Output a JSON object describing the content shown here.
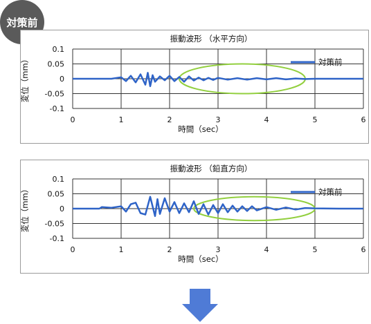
{
  "badge": {
    "label": "対策前"
  },
  "colors": {
    "series": "#2e63c7",
    "highlight": "#92cf3e",
    "grid": "#333333",
    "badge": "#5a5a5a",
    "arrow": "#4f7bd6"
  },
  "icons": {
    "flow_arrow": "down-arrow-icon"
  },
  "chart_data": [
    {
      "type": "line",
      "title": "振動波形 （水平方向）",
      "xlabel": "時間（sec）",
      "ylabel": "変位（mm）",
      "xlim": [
        0,
        6
      ],
      "ylim": [
        -0.1,
        0.1
      ],
      "xticks": [
        "0",
        "1",
        "2",
        "3",
        "4",
        "5",
        "6"
      ],
      "yticks": [
        "0.1",
        "0.05",
        "0",
        "-0.05",
        "-0.1"
      ],
      "grid": true,
      "legend": "top-right",
      "highlight_ellipse": {
        "x_center": 3.5,
        "x_width": 2.6,
        "y_center": 0.0,
        "y_height": 0.1
      },
      "series": [
        {
          "name": "対策前",
          "x": [
            0.0,
            0.5,
            0.8,
            1.0,
            1.1,
            1.2,
            1.3,
            1.4,
            1.5,
            1.55,
            1.6,
            1.65,
            1.7,
            1.8,
            1.9,
            2.0,
            2.1,
            2.2,
            2.3,
            2.4,
            2.5,
            2.6,
            2.7,
            2.8,
            2.9,
            3.0,
            3.2,
            3.4,
            3.6,
            3.8,
            4.0,
            4.2,
            4.4,
            4.6,
            4.8,
            5.0,
            5.5,
            6.0
          ],
          "y": [
            0.0,
            0.0,
            0.0,
            0.005,
            -0.008,
            0.01,
            -0.012,
            0.015,
            -0.02,
            0.02,
            -0.025,
            0.012,
            -0.01,
            0.008,
            -0.005,
            0.01,
            -0.008,
            0.006,
            -0.01,
            0.008,
            -0.006,
            0.004,
            -0.005,
            0.003,
            -0.004,
            0.003,
            -0.003,
            0.002,
            -0.003,
            0.002,
            -0.002,
            0.002,
            -0.002,
            0.001,
            -0.001,
            0.0,
            0.0,
            0.0
          ]
        }
      ]
    },
    {
      "type": "line",
      "title": "振動波形 （鉛直方向）",
      "xlabel": "時間（sec）",
      "ylabel": "変位（mm）",
      "xlim": [
        0,
        6
      ],
      "ylim": [
        -0.1,
        0.1
      ],
      "xticks": [
        "0",
        "1",
        "2",
        "3",
        "4",
        "5",
        "6"
      ],
      "yticks": [
        "0.1",
        "0.05",
        "0",
        "-0.05",
        "-0.1"
      ],
      "grid": true,
      "legend": "top-right",
      "highlight_ellipse": {
        "x_center": 3.75,
        "x_width": 2.5,
        "y_center": 0.0,
        "y_height": 0.08
      },
      "series": [
        {
          "name": "対策前",
          "x": [
            0.0,
            0.55,
            0.6,
            0.8,
            1.0,
            1.1,
            1.2,
            1.3,
            1.4,
            1.5,
            1.6,
            1.7,
            1.75,
            1.8,
            1.9,
            2.0,
            2.1,
            2.2,
            2.3,
            2.4,
            2.5,
            2.6,
            2.7,
            2.8,
            2.9,
            3.0,
            3.1,
            3.2,
            3.3,
            3.4,
            3.5,
            3.6,
            3.7,
            3.8,
            4.0,
            4.2,
            4.4,
            4.6,
            4.8,
            5.0,
            5.5,
            6.0
          ],
          "y": [
            0.0,
            0.0,
            0.005,
            0.003,
            0.008,
            -0.01,
            0.015,
            0.02,
            -0.015,
            -0.02,
            0.04,
            -0.025,
            0.032,
            -0.018,
            0.035,
            -0.01,
            0.022,
            -0.015,
            0.018,
            -0.012,
            0.025,
            -0.018,
            0.015,
            -0.02,
            0.012,
            -0.015,
            0.015,
            -0.012,
            0.01,
            -0.01,
            0.008,
            -0.008,
            0.008,
            -0.006,
            0.005,
            -0.004,
            0.004,
            -0.003,
            0.002,
            0.001,
            0.0,
            0.0
          ]
        }
      ]
    }
  ]
}
